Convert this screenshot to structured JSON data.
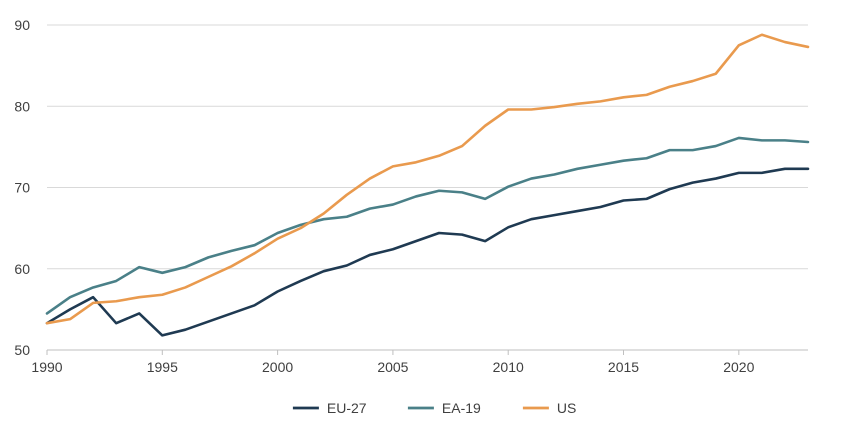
{
  "chart_data": {
    "type": "line",
    "title": "",
    "xlabel": "",
    "ylabel": "",
    "xlim": [
      1990,
      2023
    ],
    "ylim": [
      50,
      90
    ],
    "x_ticks": [
      1990,
      1995,
      2000,
      2005,
      2010,
      2015,
      2020
    ],
    "y_ticks": [
      50,
      60,
      70,
      80,
      90
    ],
    "grid": "horizontal",
    "legend_position": "bottom",
    "x": [
      1990,
      1991,
      1992,
      1993,
      1994,
      1995,
      1996,
      1997,
      1998,
      1999,
      2000,
      2001,
      2002,
      2003,
      2004,
      2005,
      2006,
      2007,
      2008,
      2009,
      2010,
      2011,
      2012,
      2013,
      2014,
      2015,
      2016,
      2017,
      2018,
      2019,
      2020,
      2021,
      2022,
      2023
    ],
    "series": [
      {
        "name": "EU-27",
        "color": "#1f3a52",
        "values": [
          53.3,
          55.0,
          56.5,
          53.3,
          54.5,
          51.8,
          52.5,
          53.5,
          54.5,
          55.5,
          57.2,
          58.5,
          59.7,
          60.4,
          61.7,
          62.4,
          63.4,
          64.4,
          64.2,
          63.4,
          65.1,
          66.1,
          66.6,
          67.1,
          67.6,
          68.4,
          68.6,
          69.8,
          70.6,
          71.1,
          71.8,
          71.8,
          72.3,
          72.3
        ]
      },
      {
        "name": "EA-19",
        "color": "#4a8088",
        "values": [
          54.5,
          56.5,
          57.7,
          58.5,
          60.2,
          59.5,
          60.2,
          61.4,
          62.2,
          62.9,
          64.4,
          65.4,
          66.1,
          66.4,
          67.4,
          67.9,
          68.9,
          69.6,
          69.4,
          68.6,
          70.1,
          71.1,
          71.6,
          72.3,
          72.8,
          73.3,
          73.6,
          74.6,
          74.6,
          75.1,
          76.1,
          75.8,
          75.8,
          75.6
        ]
      },
      {
        "name": "US",
        "color": "#e99a4e",
        "values": [
          53.3,
          53.8,
          55.8,
          56.0,
          56.5,
          56.8,
          57.7,
          59.0,
          60.3,
          61.9,
          63.7,
          65.0,
          66.8,
          69.1,
          71.1,
          72.6,
          73.1,
          73.9,
          75.1,
          77.6,
          79.6,
          79.6,
          79.9,
          80.3,
          80.6,
          81.1,
          81.4,
          82.4,
          83.1,
          84.0,
          87.5,
          88.8,
          87.9,
          87.3
        ]
      }
    ]
  }
}
